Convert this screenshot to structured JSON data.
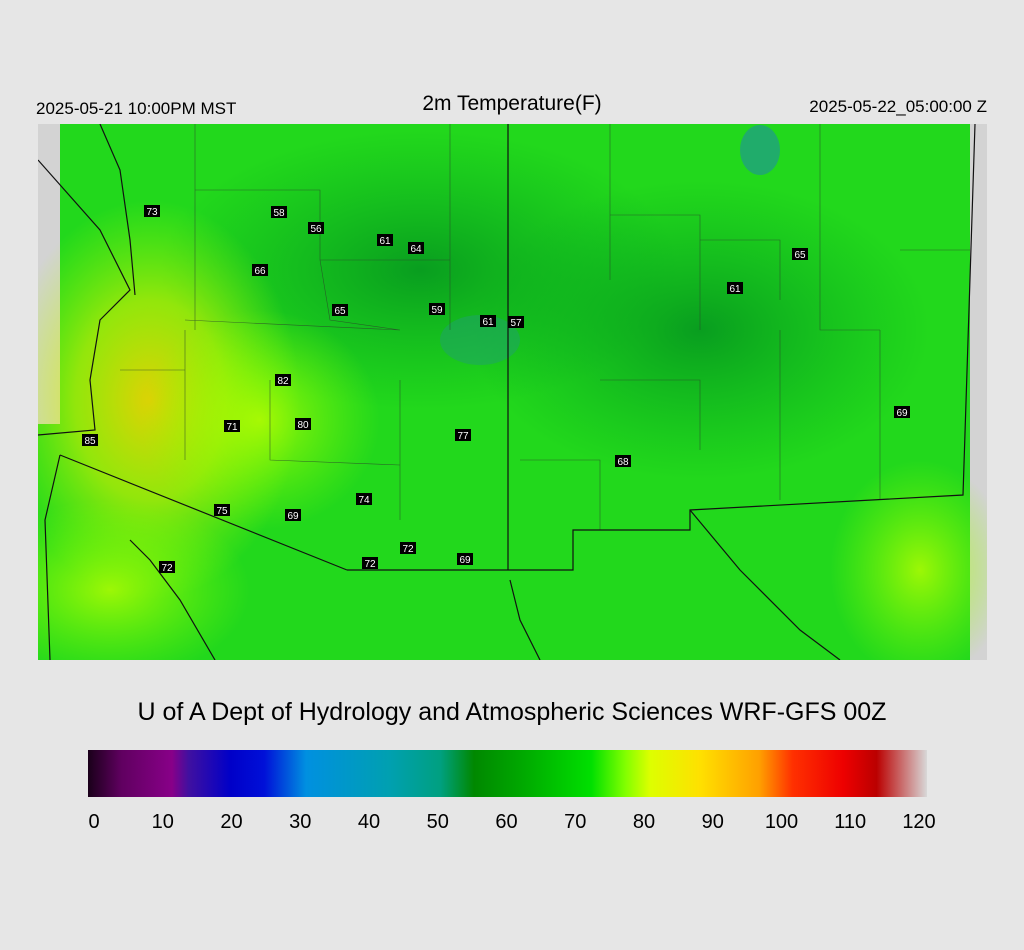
{
  "header": {
    "left": "2025-05-21 10:00PM MST",
    "title": "2m Temperature(F)",
    "right": "2025-05-22_05:00:00 Z"
  },
  "stations": [
    "73",
    "58",
    "56",
    "61",
    "64",
    "66",
    "65",
    "65",
    "59",
    "61",
    "57",
    "61",
    "82",
    "69",
    "71",
    "80",
    "85",
    "77",
    "68",
    "74",
    "75",
    "69",
    "72",
    "72",
    "69",
    "72"
  ],
  "credit": "U of A Dept of Hydrology and Atmospheric Sciences WRF-GFS 00Z",
  "colorbar": {
    "ticks": [
      0,
      10,
      20,
      30,
      40,
      50,
      60,
      70,
      80,
      90,
      100,
      110,
      120
    ]
  }
}
